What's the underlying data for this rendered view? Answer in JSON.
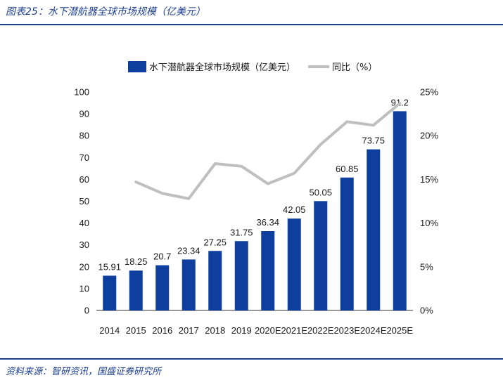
{
  "header": {
    "title": "图表25：水下潜航器全球市场规模（亿美元）"
  },
  "footer": {
    "source": "资料来源：智研资讯，国盛证券研究所"
  },
  "chart_data": {
    "type": "bar",
    "categories": [
      "2014",
      "2015",
      "2016",
      "2017",
      "2018",
      "2019",
      "2020E",
      "2021E",
      "2022E",
      "2023E",
      "2024E",
      "2025E"
    ],
    "series": [
      {
        "name": "水下潜航器全球市场规模（亿美元）",
        "type": "bar",
        "axis": "left",
        "color": "#0f3f9e",
        "values": [
          15.91,
          18.25,
          20.7,
          23.34,
          27.25,
          31.75,
          36.34,
          42.05,
          50.05,
          60.85,
          73.75,
          91.2
        ],
        "labels": [
          "15.91",
          "18.25",
          "20.7",
          "23.34",
          "27.25",
          "31.75",
          "36.34",
          "42.05",
          "50.05",
          "60.85",
          "73.75",
          "91.2"
        ]
      },
      {
        "name": "同比（%）",
        "type": "line",
        "axis": "right",
        "color": "#bfbfbf",
        "values": [
          null,
          14.7,
          13.4,
          12.8,
          16.8,
          16.5,
          14.5,
          15.7,
          19.0,
          21.6,
          21.2,
          23.7
        ]
      }
    ],
    "ylim_left": [
      0,
      100
    ],
    "yticks_left": [
      "0",
      "10",
      "20",
      "30",
      "40",
      "50",
      "60",
      "70",
      "80",
      "90",
      "100"
    ],
    "ylim_right": [
      0,
      25
    ],
    "yticks_right": [
      "0%",
      "5%",
      "10%",
      "15%",
      "20%",
      "25%"
    ],
    "legend_position": "top",
    "grid": false
  }
}
